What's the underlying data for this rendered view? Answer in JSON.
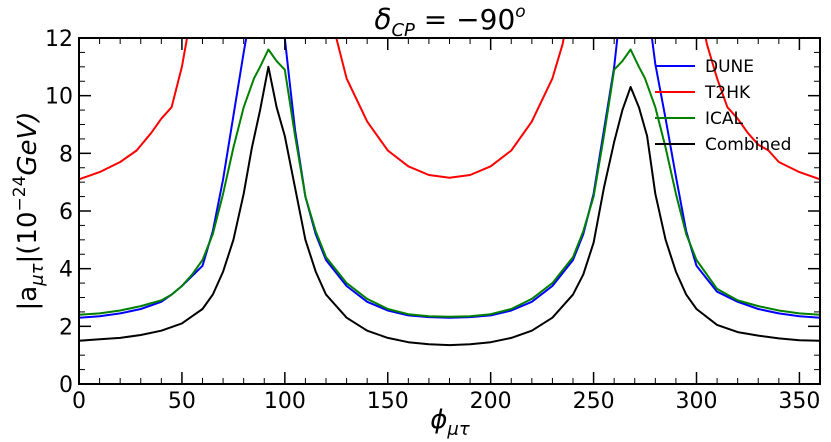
{
  "chart_data": {
    "type": "line",
    "title_main": "δ",
    "title_sub": "CP",
    "title_rest": " = −90",
    "title_sup": "o",
    "xlabel_main": "ϕ",
    "xlabel_sub": "μτ",
    "ylabel_pre": "|a",
    "ylabel_sub": "μτ",
    "ylabel_mid": "|(10",
    "ylabel_sup": "−24",
    "ylabel_post": "GeV)",
    "xlim": [
      0,
      360
    ],
    "ylim": [
      0,
      12
    ],
    "xticks": [
      0,
      50,
      100,
      150,
      200,
      250,
      300,
      350
    ],
    "yticks": [
      0,
      2,
      4,
      6,
      8,
      10,
      12
    ],
    "legend_position": "top-right",
    "series": [
      {
        "name": "DUNE",
        "color": "#0000ff",
        "x": [
          0,
          10,
          20,
          30,
          40,
          45,
          50,
          55,
          60,
          65,
          70,
          75,
          80,
          82,
          84,
          98,
          100,
          102,
          105,
          110,
          115,
          120,
          130,
          140,
          150,
          160,
          170,
          180,
          190,
          200,
          210,
          220,
          230,
          240,
          245,
          250,
          255,
          260,
          262,
          264,
          276,
          278,
          280,
          285,
          290,
          295,
          300,
          310,
          320,
          330,
          340,
          350,
          360
        ],
        "y": [
          2.3,
          2.35,
          2.45,
          2.6,
          2.85,
          3.1,
          3.4,
          3.75,
          4.1,
          5.3,
          7.1,
          9.3,
          11.5,
          12.3,
          13.0,
          13.0,
          12.0,
          10.7,
          8.8,
          6.5,
          5.2,
          4.3,
          3.4,
          2.85,
          2.55,
          2.38,
          2.32,
          2.3,
          2.32,
          2.38,
          2.55,
          2.85,
          3.4,
          4.3,
          5.2,
          6.6,
          8.8,
          11.0,
          12.3,
          13.0,
          13.0,
          12.2,
          11.1,
          9.2,
          7.2,
          5.3,
          4.1,
          3.2,
          2.85,
          2.6,
          2.45,
          2.35,
          2.3
        ]
      },
      {
        "name": "T2HK",
        "color": "#ff0000",
        "x": [
          0,
          10,
          20,
          28,
          35,
          40,
          45,
          50,
          52,
          55,
          122,
          125,
          130,
          140,
          150,
          160,
          170,
          180,
          190,
          200,
          210,
          220,
          230,
          235,
          238,
          302,
          305,
          310,
          315,
          320,
          325,
          330,
          335,
          340,
          350,
          360
        ],
        "y": [
          7.1,
          7.35,
          7.7,
          8.1,
          8.7,
          9.2,
          9.6,
          11.0,
          11.8,
          13.0,
          13.0,
          12.0,
          10.6,
          9.1,
          8.1,
          7.55,
          7.25,
          7.15,
          7.25,
          7.55,
          8.1,
          9.1,
          10.6,
          11.8,
          13.0,
          13.0,
          11.8,
          10.6,
          9.6,
          9.2,
          8.7,
          8.3,
          8.1,
          7.7,
          7.35,
          7.1
        ]
      },
      {
        "name": "ICAL",
        "color": "#008000",
        "x": [
          0,
          10,
          20,
          30,
          40,
          45,
          50,
          55,
          60,
          65,
          70,
          75,
          80,
          85,
          88,
          92,
          96,
          100,
          105,
          110,
          115,
          120,
          130,
          140,
          150,
          160,
          170,
          180,
          190,
          200,
          210,
          220,
          230,
          240,
          245,
          250,
          255,
          260,
          264,
          268,
          272,
          275,
          280,
          285,
          290,
          295,
          300,
          310,
          320,
          330,
          340,
          350,
          360
        ],
        "y": [
          2.4,
          2.45,
          2.55,
          2.7,
          2.9,
          3.1,
          3.4,
          3.8,
          4.3,
          5.2,
          6.6,
          8.2,
          9.6,
          10.6,
          11.0,
          11.6,
          11.2,
          10.9,
          8.6,
          6.5,
          5.3,
          4.4,
          3.5,
          2.95,
          2.6,
          2.42,
          2.35,
          2.33,
          2.35,
          2.42,
          2.6,
          2.95,
          3.5,
          4.4,
          5.3,
          6.5,
          8.6,
          10.9,
          11.2,
          11.6,
          11.0,
          10.6,
          9.6,
          8.2,
          6.6,
          5.2,
          4.3,
          3.3,
          2.9,
          2.7,
          2.55,
          2.45,
          2.4
        ]
      },
      {
        "name": "Combined",
        "color": "#000000",
        "x": [
          0,
          10,
          20,
          30,
          40,
          50,
          55,
          60,
          65,
          70,
          75,
          80,
          84,
          88,
          92,
          96,
          100,
          105,
          110,
          115,
          120,
          130,
          140,
          150,
          160,
          170,
          180,
          190,
          200,
          210,
          220,
          230,
          240,
          245,
          250,
          255,
          260,
          264,
          268,
          272,
          276,
          280,
          285,
          290,
          295,
          300,
          310,
          320,
          330,
          340,
          350,
          360
        ],
        "y": [
          1.5,
          1.55,
          1.6,
          1.7,
          1.85,
          2.1,
          2.35,
          2.6,
          3.1,
          3.9,
          5.0,
          6.6,
          8.2,
          9.5,
          11.0,
          9.6,
          8.6,
          6.8,
          5.0,
          3.9,
          3.1,
          2.3,
          1.85,
          1.6,
          1.45,
          1.38,
          1.35,
          1.38,
          1.45,
          1.6,
          1.85,
          2.3,
          3.1,
          3.8,
          4.9,
          6.8,
          8.4,
          9.5,
          10.3,
          9.6,
          8.6,
          6.6,
          5.0,
          3.9,
          3.1,
          2.6,
          2.05,
          1.8,
          1.68,
          1.58,
          1.52,
          1.5
        ]
      }
    ]
  }
}
